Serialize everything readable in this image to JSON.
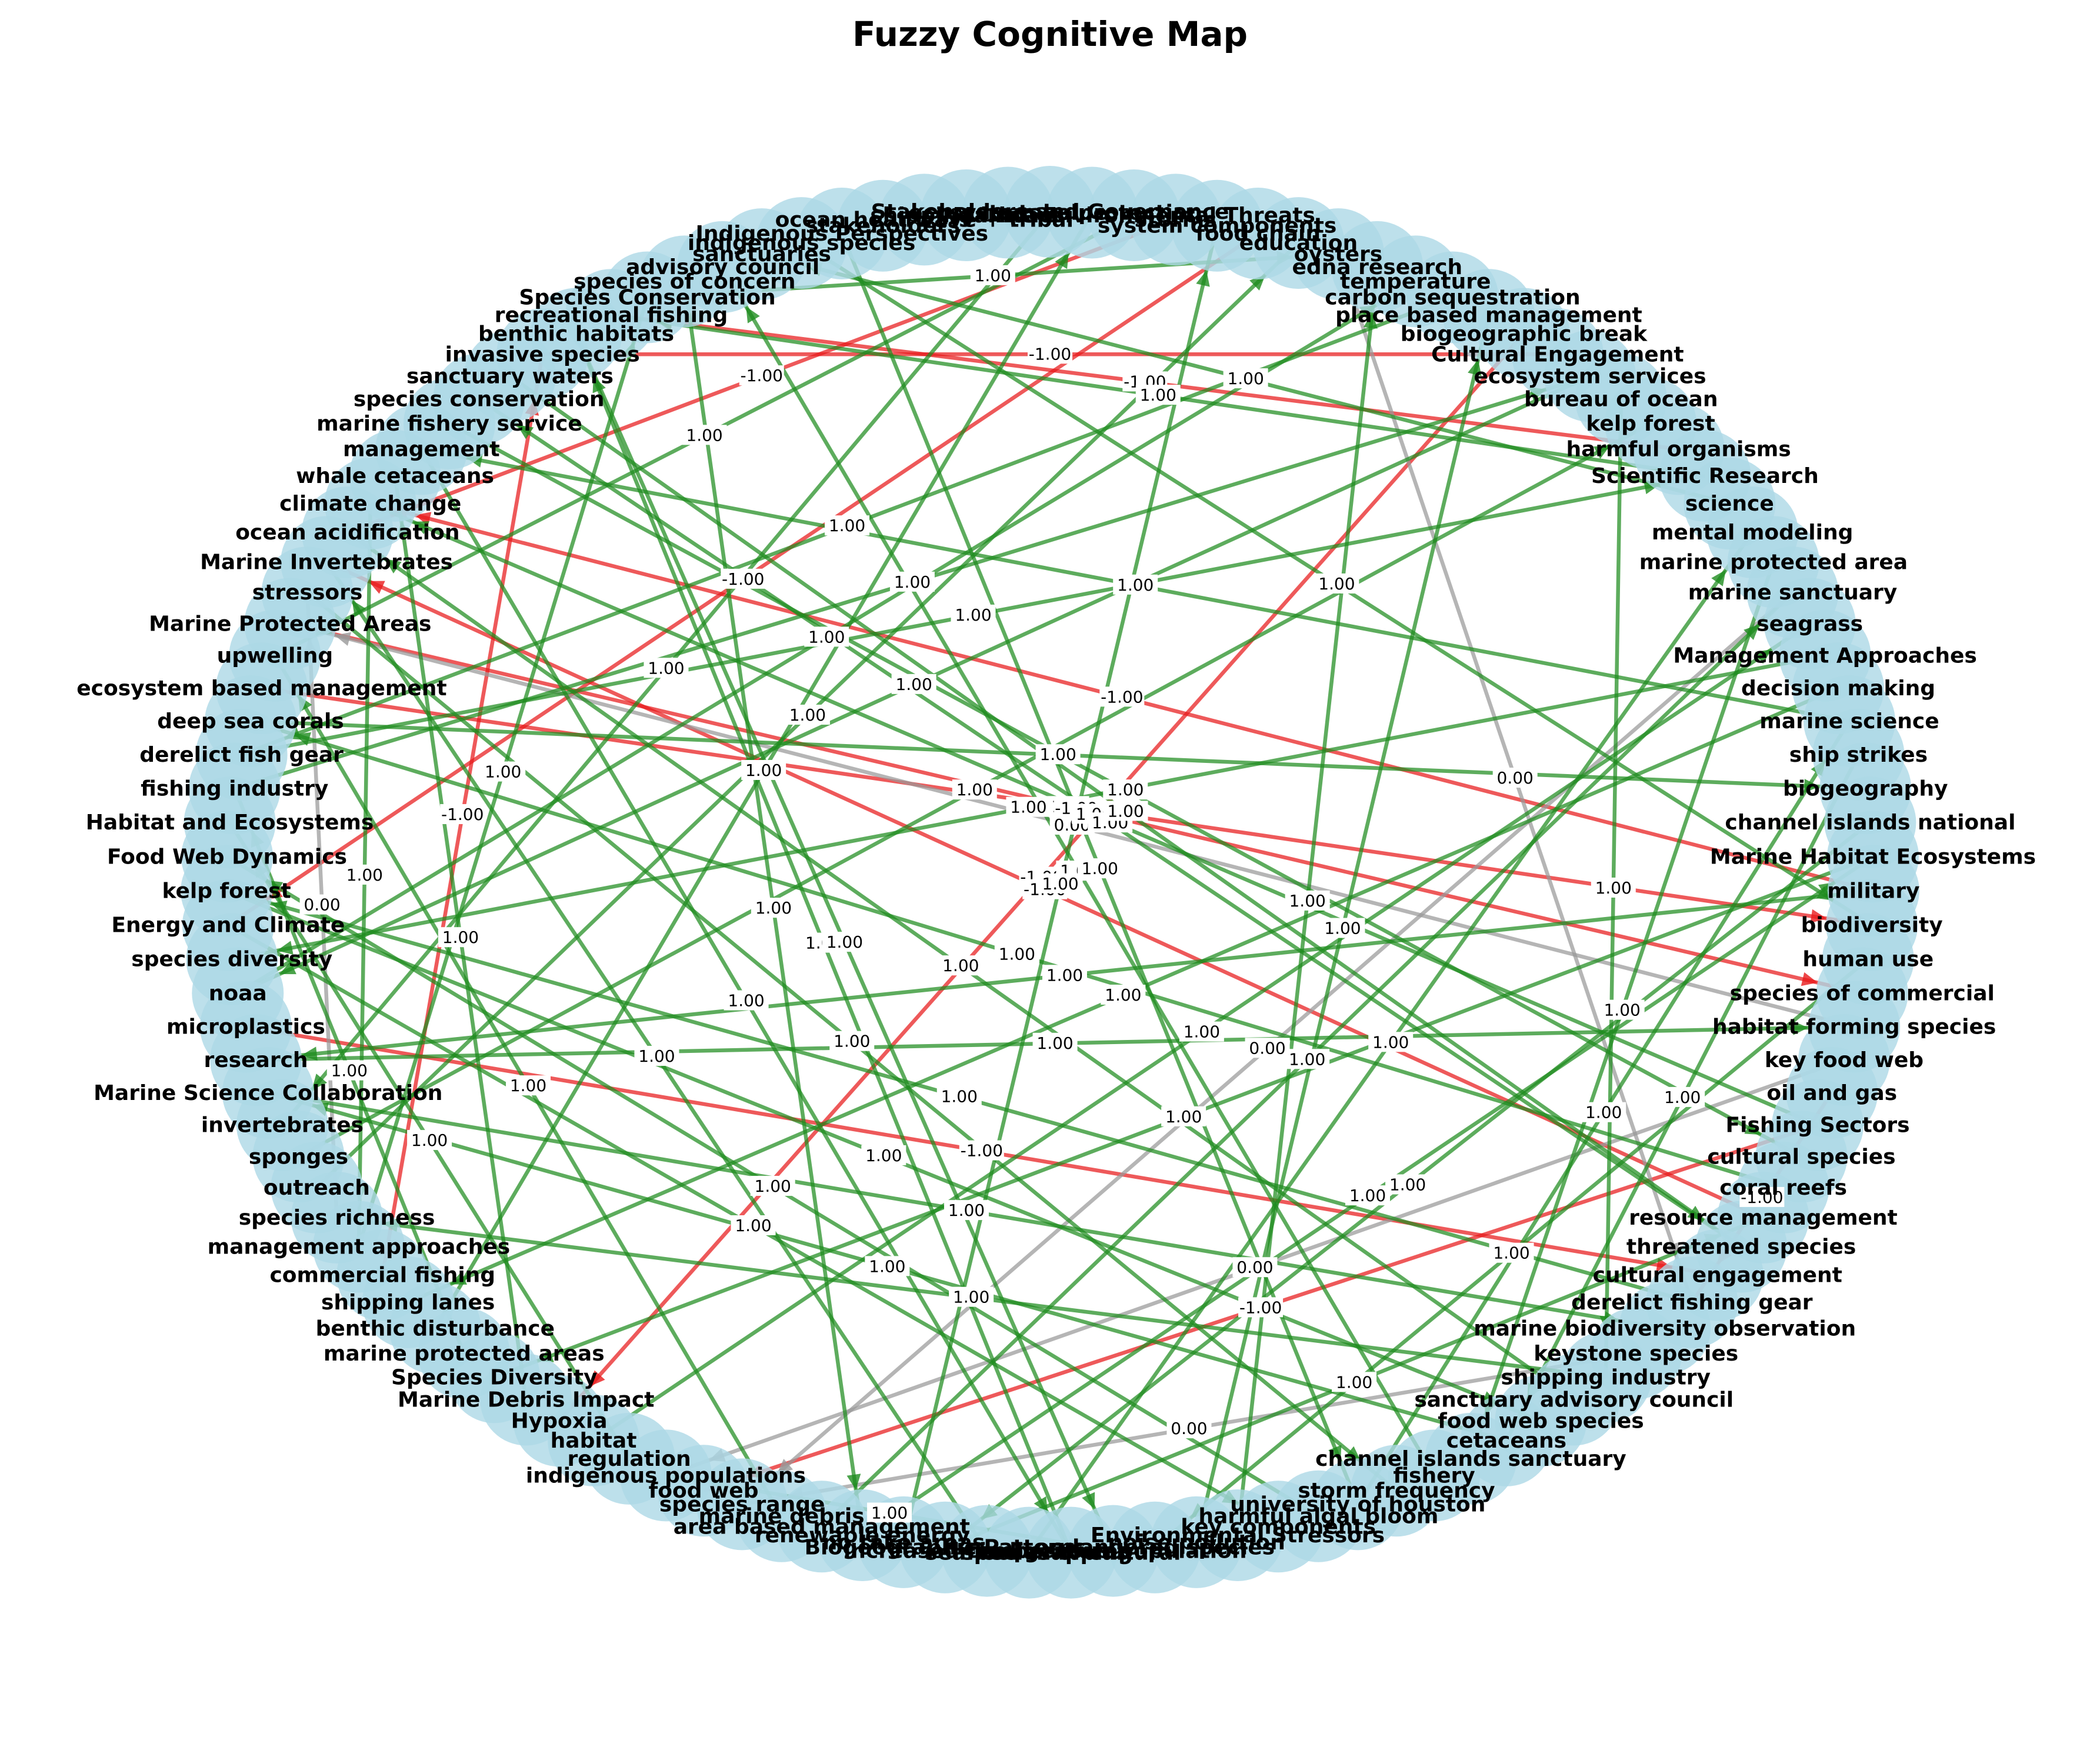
{
  "title": "Fuzzy Cognitive Map",
  "colors": {
    "node": "#add8e6",
    "positive_edge": "#1e8c1e",
    "negative_edge": "#e8191a",
    "zero_edge": "#999999",
    "label_text": "#000000",
    "background": "#ffffff"
  },
  "nodes": [
    "Stakeholders and Governance",
    "no take protection",
    "Marine Environmental Threats",
    "storms",
    "system components",
    "food chain",
    "education",
    "oysters",
    "edna research",
    "temperature",
    "carbon sequestration",
    "place based management",
    "biogeographic break",
    "Cultural Engagement",
    "ecosystem services",
    "bureau of ocean",
    "kelp forest",
    "harmful organisms",
    "Scientific Research",
    "science",
    "mental modeling",
    "marine protected area",
    "marine sanctuary",
    "seagrass",
    "Management Approaches",
    "decision making",
    "marine science",
    "ship strikes",
    "biogeography",
    "channel islands national",
    "Marine Habitat Ecosystems",
    "military",
    "biodiversity",
    "human use",
    "species of commercial",
    "habitat forming species",
    "key food web",
    "oil and gas",
    "Fishing Sectors",
    "cultural species",
    "coral reefs",
    "resource management",
    "threatened species",
    "cultural engagement",
    "derelict fishing gear",
    "marine biodiversity observation",
    "keystone species",
    "shipping industry",
    "sanctuary advisory council",
    "food web species",
    "cetaceans",
    "channel islands sanctuary",
    "fishery",
    "storm frequency",
    "university of houston",
    "harmful algal bloom",
    "key components",
    "Environmental Stressors",
    "noise pollution",
    "endangered species",
    "indigenous population",
    "species of cultural",
    "seafloor mapping",
    "increased temperatures",
    "Biogeographic Patterns",
    "no take areas",
    "renewable energy",
    "area based management",
    "marine debris",
    "species range",
    "food web",
    "indigenous populations",
    "regulation",
    "habitat",
    "Hypoxia",
    "Marine Debris Impact",
    "Species Diversity",
    "marine protected areas",
    "benthic disturbance",
    "shipping lanes",
    "commercial fishing",
    "management approaches",
    "species richness",
    "outreach",
    "sponges",
    "invertebrates",
    "Marine Science Collaboration",
    "research",
    "microplastics",
    "noaa",
    "species diversity",
    "Energy and Climate",
    "kelp forest",
    "Food Web Dynamics",
    "Habitat and Ecosystems",
    "fishing industry",
    "derelict fish gear",
    "deep sea corals",
    "ecosystem based management",
    "upwelling",
    "Marine Protected Areas",
    "stressors",
    "Marine Invertebrates",
    "ocean acidification",
    "climate change",
    "whale cetaceans",
    "management",
    "marine fishery service",
    "species conservation",
    "sanctuary waters",
    "invasive species",
    "benthic habitats",
    "recreational fishing",
    "Species Conservation",
    "species of concern",
    "advisory council",
    "sanctuaries",
    "indigenous species",
    "Indigenous Perspectives",
    "stakeholders",
    "ocean heat wave + tribal",
    "shipping impact",
    "ecosystem value"
  ],
  "edges": [
    {
      "from": 38,
      "to": 70,
      "weight": "-1.00"
    },
    {
      "from": 17,
      "to": 112,
      "weight": "-1.00"
    },
    {
      "from": 3,
      "to": 103,
      "weight": "-1.00"
    },
    {
      "from": 37,
      "to": 44,
      "weight": "-1.00"
    },
    {
      "from": 5,
      "to": 91,
      "weight": "-1.00"
    },
    {
      "from": 98,
      "to": 32,
      "weight": "-1.00"
    },
    {
      "from": 12,
      "to": 74,
      "weight": "-1.00"
    },
    {
      "from": 41,
      "to": 102,
      "weight": "-1.00"
    },
    {
      "from": 13,
      "to": 110,
      "weight": "-1.00"
    },
    {
      "from": 88,
      "to": 43,
      "weight": "-1.00"
    },
    {
      "from": 100,
      "to": 34,
      "weight": "-1.00"
    },
    {
      "from": 80,
      "to": 110,
      "weight": "-1.00"
    },
    {
      "from": 31,
      "to": 104,
      "weight": "-1.00"
    },
    {
      "from": 22,
      "to": 69,
      "weight": "0.00"
    },
    {
      "from": 35,
      "to": 100,
      "weight": "0.00"
    },
    {
      "from": 82,
      "to": 101,
      "weight": "0.00"
    },
    {
      "from": 46,
      "to": 69,
      "weight": "0.00"
    },
    {
      "from": 36,
      "to": 71,
      "weight": "0.00"
    },
    {
      "from": 7,
      "to": 44,
      "weight": "0.00"
    },
    {
      "from": 18,
      "to": 112,
      "weight": "1.00"
    },
    {
      "from": 24,
      "to": 90,
      "weight": "1.00"
    },
    {
      "from": 30,
      "to": 76,
      "weight": "1.00"
    },
    {
      "from": 38,
      "to": 104,
      "weight": "1.00"
    },
    {
      "from": 57,
      "to": 8,
      "weight": "1.00"
    },
    {
      "from": 64,
      "to": 41,
      "weight": "1.00"
    },
    {
      "from": 75,
      "to": 105,
      "weight": "1.00"
    },
    {
      "from": 86,
      "to": 45,
      "weight": "1.00"
    },
    {
      "from": 91,
      "to": 56,
      "weight": "1.00"
    },
    {
      "from": 92,
      "to": 49,
      "weight": "1.00"
    },
    {
      "from": 0,
      "to": 85,
      "weight": "1.00"
    },
    {
      "from": 2,
      "to": 99,
      "weight": "1.00"
    },
    {
      "from": 10,
      "to": 96,
      "weight": "1.00"
    },
    {
      "from": 14,
      "to": 89,
      "weight": "1.00"
    },
    {
      "from": 19,
      "to": 116,
      "weight": "1.00"
    },
    {
      "from": 21,
      "to": 51,
      "weight": "1.00"
    },
    {
      "from": 25,
      "to": 79,
      "weight": "1.00"
    },
    {
      "from": 26,
      "to": 106,
      "weight": "1.00"
    },
    {
      "from": 27,
      "to": 50,
      "weight": "1.00"
    },
    {
      "from": 29,
      "to": 64,
      "weight": "1.00"
    },
    {
      "from": 33,
      "to": 59,
      "weight": "1.00"
    },
    {
      "from": 40,
      "to": 97,
      "weight": "1.00"
    },
    {
      "from": 42,
      "to": 108,
      "weight": "1.00"
    },
    {
      "from": 47,
      "to": 82,
      "weight": "1.00"
    },
    {
      "from": 52,
      "to": 115,
      "weight": "1.00"
    },
    {
      "from": 54,
      "to": 26,
      "weight": "1.00"
    },
    {
      "from": 55,
      "to": 93,
      "weight": "1.00"
    },
    {
      "from": 58,
      "to": 11,
      "weight": "1.00"
    },
    {
      "from": 60,
      "to": 71,
      "weight": "1.00"
    },
    {
      "from": 61,
      "to": 111,
      "weight": "1.00"
    },
    {
      "from": 62,
      "to": 20,
      "weight": "1.00"
    },
    {
      "from": 63,
      "to": 102,
      "weight": "1.00"
    },
    {
      "from": 65,
      "to": 4,
      "weight": "1.00"
    },
    {
      "from": 66,
      "to": 30,
      "weight": "1.00"
    },
    {
      "from": 67,
      "to": 22,
      "weight": "1.00"
    },
    {
      "from": 72,
      "to": 94,
      "weight": "1.00"
    },
    {
      "from": 73,
      "to": 23,
      "weight": "1.00"
    },
    {
      "from": 77,
      "to": 95,
      "weight": "1.00"
    },
    {
      "from": 78,
      "to": 1,
      "weight": "1.00"
    },
    {
      "from": 81,
      "to": 113,
      "weight": "1.00"
    },
    {
      "from": 83,
      "to": 6,
      "weight": "1.00"
    },
    {
      "from": 84,
      "to": 16,
      "weight": "1.00"
    },
    {
      "from": 87,
      "to": 35,
      "weight": "1.00"
    },
    {
      "from": 89,
      "to": 9,
      "weight": "1.00"
    },
    {
      "from": 95,
      "to": 14,
      "weight": "1.00"
    },
    {
      "from": 97,
      "to": 28,
      "weight": "1.00"
    },
    {
      "from": 101,
      "to": 53,
      "weight": "1.00"
    },
    {
      "from": 104,
      "to": 81,
      "weight": "1.00"
    },
    {
      "from": 107,
      "to": 39,
      "weight": "1.00"
    },
    {
      "from": 109,
      "to": 42,
      "weight": "1.00"
    },
    {
      "from": 111,
      "to": 60,
      "weight": "1.00"
    },
    {
      "from": 114,
      "to": 66,
      "weight": "1.00"
    },
    {
      "from": 117,
      "to": 32,
      "weight": "1.00"
    },
    {
      "from": 118,
      "to": 54,
      "weight": "1.00"
    },
    {
      "from": 15,
      "to": 47,
      "weight": "1.00"
    },
    {
      "from": 31,
      "to": 87,
      "weight": "1.00"
    },
    {
      "from": 48,
      "to": 103,
      "weight": "1.00"
    },
    {
      "from": 68,
      "to": 99,
      "weight": "1.00"
    },
    {
      "from": 96,
      "to": 18,
      "weight": "1.00"
    },
    {
      "from": 106,
      "to": 61,
      "weight": "1.00"
    },
    {
      "from": 113,
      "to": 7,
      "weight": "1.00"
    },
    {
      "from": 44,
      "to": 92,
      "weight": "1.00"
    },
    {
      "from": 50,
      "to": 86,
      "weight": "1.00"
    }
  ]
}
